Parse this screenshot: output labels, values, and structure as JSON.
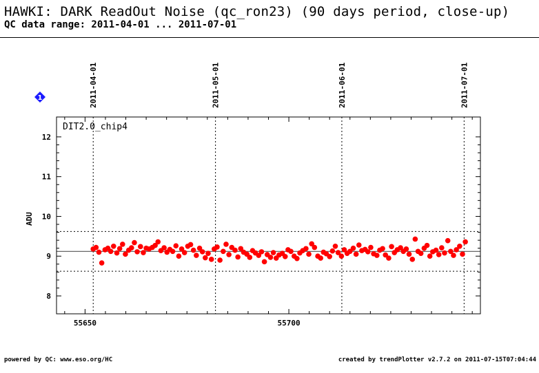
{
  "header": {
    "title": "HAWKI: DARK ReadOut Noise (qc_ron23) (90 days period, close-up)",
    "subtitle": "QC data range: 2011-04-01 ... 2011-07-01"
  },
  "badge": {
    "label": "1"
  },
  "footer": {
    "left": "powered by QC: www.eso.org/HC",
    "right": "created by trendPlotter v2.7.2 on 2011-07-15T07:04:44"
  },
  "colors": {
    "points": "#ff0000",
    "badge": "#1a1aff",
    "axis": "#000000"
  },
  "chart_data": {
    "type": "scatter",
    "panel_label": "DIT2.0_chip4",
    "ylabel": "ADU",
    "xlim": [
      55643,
      55747
    ],
    "ylim": [
      7.55,
      12.5
    ],
    "x_ticks": [
      55650,
      55700
    ],
    "x_tick_labels": [
      "55650",
      "55700"
    ],
    "y_ticks": [
      8,
      9,
      10,
      11,
      12
    ],
    "y_tick_labels": [
      "8",
      "9",
      "10",
      "11",
      "12"
    ],
    "date_markers": [
      {
        "x": 55652,
        "label": "2011-04-01"
      },
      {
        "x": 55682,
        "label": "2011-05-01"
      },
      {
        "x": 55713,
        "label": "2011-06-01"
      },
      {
        "x": 55743,
        "label": "2011-07-01"
      }
    ],
    "reference_lines": {
      "mean": 9.12,
      "upper": 9.62,
      "lower": 8.62
    },
    "series": [
      {
        "x": [
          55652.0,
          55652.7,
          55653.4,
          55654.1,
          55654.9,
          55655.6,
          55656.3,
          55657.0,
          55657.8,
          55658.5,
          55659.2,
          55659.9,
          55660.7,
          55661.4,
          55662.1,
          55662.8,
          55663.6,
          55664.3,
          55665.0,
          55665.7,
          55666.5,
          55667.2,
          55667.9,
          55668.6,
          55669.4,
          55670.1,
          55670.8,
          55671.5,
          55672.3,
          55673.0,
          55673.7,
          55674.4,
          55675.2,
          55675.9,
          55676.6,
          55677.3,
          55678.1,
          55678.8,
          55679.5,
          55680.2,
          55681.0,
          55681.7,
          55682.4,
          55683.1,
          55683.9,
          55684.6,
          55685.3,
          55686.0,
          55686.8,
          55687.5,
          55688.2,
          55688.9,
          55689.7,
          55690.4,
          55691.1,
          55691.8,
          55692.6,
          55693.3,
          55694.0,
          55694.7,
          55695.5,
          55696.2,
          55696.9,
          55697.6,
          55698.4,
          55699.1,
          55699.8,
          55700.5,
          55701.3,
          55702.0,
          55702.7,
          55703.4,
          55704.2,
          55704.9,
          55705.6,
          55706.3,
          55707.1,
          55707.8,
          55708.5,
          55709.2,
          55710.0,
          55710.7,
          55711.4,
          55712.1,
          55712.9,
          55713.6,
          55714.3,
          55715.0,
          55715.8,
          55716.5,
          55717.2,
          55717.9,
          55718.7,
          55719.4,
          55720.1,
          55720.8,
          55721.6,
          55722.3,
          55723.0,
          55723.7,
          55724.5,
          55725.2,
          55725.9,
          55726.6,
          55727.4,
          55728.1,
          55728.8,
          55729.5,
          55730.3,
          55731.0,
          55731.7,
          55732.4,
          55733.2,
          55733.9,
          55734.6,
          55735.3,
          55736.1,
          55736.8,
          55737.5,
          55738.2,
          55739.0,
          55739.7,
          55740.4,
          55741.1,
          55741.9,
          55742.6,
          55743.3
        ],
        "y": [
          9.18,
          9.22,
          9.1,
          8.83,
          9.16,
          9.2,
          9.12,
          9.25,
          9.08,
          9.19,
          9.3,
          9.05,
          9.15,
          9.21,
          9.34,
          9.11,
          9.24,
          9.09,
          9.2,
          9.18,
          9.22,
          9.27,
          9.36,
          9.14,
          9.21,
          9.1,
          9.17,
          9.12,
          9.26,
          9.0,
          9.18,
          9.09,
          9.25,
          9.29,
          9.15,
          9.02,
          9.2,
          9.11,
          8.96,
          9.07,
          8.92,
          9.18,
          9.23,
          8.9,
          9.12,
          9.3,
          9.04,
          9.22,
          9.15,
          8.98,
          9.19,
          9.1,
          9.05,
          8.97,
          9.14,
          9.08,
          9.02,
          9.11,
          8.86,
          9.04,
          8.97,
          9.09,
          8.95,
          9.03,
          9.07,
          8.99,
          9.16,
          9.12,
          9.0,
          8.94,
          9.08,
          9.14,
          9.19,
          9.05,
          9.31,
          9.22,
          9.0,
          8.95,
          9.1,
          9.06,
          8.99,
          9.13,
          9.25,
          9.09,
          9.0,
          9.16,
          9.07,
          9.12,
          9.2,
          9.05,
          9.28,
          9.14,
          9.17,
          9.11,
          9.22,
          9.06,
          9.02,
          9.15,
          9.19,
          9.03,
          8.95,
          9.24,
          9.09,
          9.16,
          9.21,
          9.12,
          9.18,
          9.05,
          8.92,
          9.43,
          9.12,
          9.07,
          9.2,
          9.27,
          9.0,
          9.11,
          9.15,
          9.04,
          9.21,
          9.08,
          9.39,
          9.12,
          9.02,
          9.16,
          9.25,
          9.05,
          9.36
        ]
      }
    ]
  }
}
